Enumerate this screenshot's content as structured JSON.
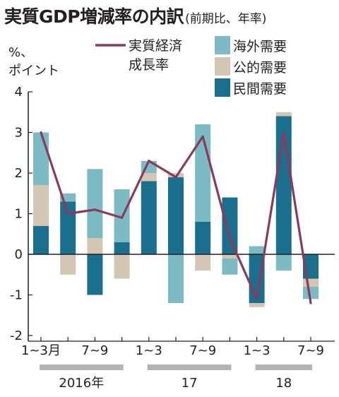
{
  "title": "実質GDP増減率の内訳",
  "subtitle": "(前期比、年率)",
  "y_unit_line1": "%、",
  "y_unit_line2": "ポイント",
  "colors": {
    "foreign": "#7cbac4",
    "public": "#d3c7b3",
    "private": "#1a6e8e",
    "line": "#8a3a5c",
    "axis": "#231f20",
    "year_bar": "#b3b3b3"
  },
  "chart_data": {
    "type": "bar",
    "stacked": true,
    "title": "実質GDP増減率の内訳",
    "subtitle": "(前期比、年率)",
    "ylabel": "%、ポイント",
    "ylim": [
      -2,
      4
    ],
    "yticks": [
      -2,
      -1,
      0,
      1,
      2,
      3,
      4
    ],
    "grid": false,
    "legend": "top-right",
    "categories": [
      "2016-Q1",
      "2016-Q2",
      "2016-Q3",
      "2016-Q4",
      "2017-Q1",
      "2017-Q2",
      "2017-Q3",
      "2017-Q4",
      "2018-Q1",
      "2018-Q2",
      "2018-Q3"
    ],
    "x_tick_labels": [
      {
        "index": 0,
        "label": "1~3月"
      },
      {
        "index": 2,
        "label": "7~9"
      },
      {
        "index": 4,
        "label": "1~3"
      },
      {
        "index": 6,
        "label": "7~9"
      },
      {
        "index": 8,
        "label": "1~3"
      },
      {
        "index": 10,
        "label": "7~9"
      }
    ],
    "year_groups": [
      {
        "label": "2016年",
        "start": 0,
        "end": 3
      },
      {
        "label": "17",
        "start": 4,
        "end": 7
      },
      {
        "label": "18",
        "start": 8,
        "end": 10
      }
    ],
    "series": [
      {
        "name": "民間需要",
        "key": "private",
        "values": [
          0.7,
          1.3,
          -1.0,
          0.3,
          1.8,
          1.9,
          0.8,
          1.4,
          -1.2,
          3.4,
          -0.6
        ]
      },
      {
        "name": "公的需要",
        "key": "public",
        "values": [
          1.0,
          -0.5,
          0.4,
          -0.6,
          0.2,
          0.1,
          -0.4,
          -0.1,
          -0.1,
          0.1,
          -0.2
        ]
      },
      {
        "name": "海外需要",
        "key": "foreign",
        "values": [
          1.3,
          0.2,
          1.7,
          1.3,
          0.3,
          -1.2,
          2.4,
          -0.4,
          0.2,
          -0.4,
          -0.3
        ]
      }
    ],
    "line_series": {
      "name": "実質経済成長率",
      "values": [
        3.0,
        1.0,
        1.1,
        0.9,
        2.3,
        1.9,
        2.9,
        0.4,
        -1.1,
        3.0,
        -1.2
      ]
    },
    "legend_entries": [
      {
        "type": "line",
        "label_lines": [
          "実質経済",
          "成長率"
        ],
        "key": "line"
      },
      {
        "type": "swatch",
        "label": "海外需要",
        "key": "foreign"
      },
      {
        "type": "swatch",
        "label": "公的需要",
        "key": "public"
      },
      {
        "type": "swatch",
        "label": "民間需要",
        "key": "private"
      }
    ]
  }
}
